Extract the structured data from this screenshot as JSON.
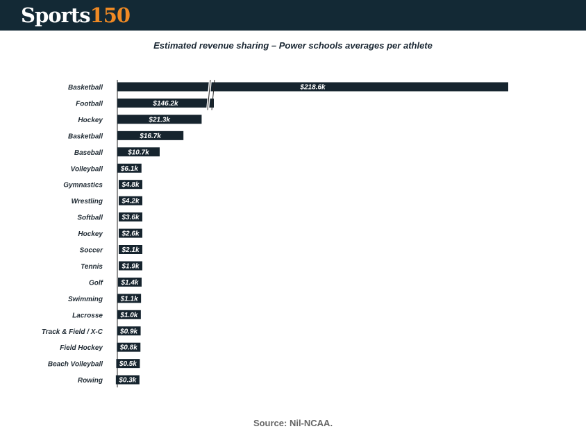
{
  "header": {
    "logo_word": "Sports",
    "logo_number": "150"
  },
  "source_text": "Source: Nil-NCAA.",
  "colors": {
    "bar": "#16242e",
    "header_bg": "#132935",
    "accent": "#f08a24"
  },
  "chart_data": {
    "type": "bar",
    "orientation": "horizontal",
    "title": "Estimated revenue sharing – Power schools averages per athlete",
    "axis_break": true,
    "categories": [
      "Basketball",
      "Football",
      "Hockey",
      "Basketball",
      "Baseball",
      "Volleyball",
      "Gymnastics",
      "Wrestling",
      "Softball",
      "Hockey",
      "Soccer",
      "Tennis",
      "Golf",
      "Swimming",
      "Lacrosse",
      "Track & Field / X-C",
      "Field Hockey",
      "Beach Volleyball",
      "Rowing"
    ],
    "values": [
      218.6,
      146.2,
      21.3,
      16.7,
      10.7,
      6.1,
      4.8,
      4.2,
      3.6,
      2.6,
      2.1,
      1.9,
      1.4,
      1.1,
      1.0,
      0.9,
      0.8,
      0.5,
      0.3
    ],
    "labels": [
      "$218.6k",
      "$146.2k",
      "$21.3k",
      "$16.7k",
      "$10.7k",
      "$6.1k",
      "$4.8k",
      "$4.2k",
      "$3.6k",
      "$2.6k",
      "$2.1k",
      "$1.9k",
      "$1.4k",
      "$1.1k",
      "$1.0k",
      "$0.9k",
      "$0.8k",
      "$0.5k",
      "$0.3k"
    ]
  }
}
